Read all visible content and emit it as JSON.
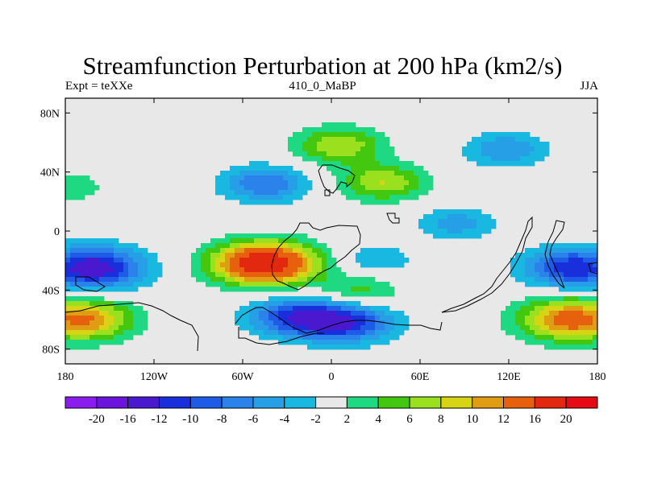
{
  "figure": {
    "title": "Streamfunction Perturbation at 200 hPa (km2/s)",
    "left_string": "Expt = teXXe",
    "center_string": "410_0_MaBP",
    "right_string": "JJA"
  },
  "map": {
    "projection": "cylindrical-equidistant",
    "lon_range": [
      -180,
      180
    ],
    "lat_range": [
      -90,
      90
    ],
    "lon_ticks": [
      {
        "value": -180,
        "label": "180"
      },
      {
        "value": -120,
        "label": "120W"
      },
      {
        "value": -60,
        "label": "60W"
      },
      {
        "value": 0,
        "label": "0"
      },
      {
        "value": 60,
        "label": "60E"
      },
      {
        "value": 120,
        "label": "120E"
      },
      {
        "value": 180,
        "label": "180"
      }
    ],
    "lat_ticks": [
      {
        "value": 80,
        "label": "80N"
      },
      {
        "value": 40,
        "label": "40N"
      },
      {
        "value": 0,
        "label": "0"
      },
      {
        "value": -40,
        "label": "40S"
      },
      {
        "value": -80,
        "label": "80S"
      }
    ],
    "background_color": "#e8e8e8",
    "coastlines": "paleogeographic outlines drawn in black"
  },
  "colorbar": {
    "levels": [
      "-20",
      "-16",
      "-12",
      "-10",
      "-8",
      "-6",
      "-4",
      "-2",
      "2",
      "4",
      "6",
      "8",
      "10",
      "12",
      "16",
      "20"
    ],
    "colors": [
      "#8a1cf0",
      "#6a14dd",
      "#4a18cf",
      "#1a2fdc",
      "#1e5be6",
      "#2a82ea",
      "#279fe6",
      "#18b8e0",
      "#e8e8e8",
      "#1ed882",
      "#43c80f",
      "#9ae01e",
      "#d6d414",
      "#e09c12",
      "#e6600e",
      "#e2280e",
      "#e60a14"
    ]
  },
  "chart_data": {
    "type": "heatmap",
    "variable": "Streamfunction Perturbation at 200 hPa",
    "units": "km2/s",
    "season": "JJA",
    "experiment": "teXXe",
    "case": "410_0_MaBP",
    "x_axis": "longitude",
    "xlim": [
      -180,
      180
    ],
    "y_axis": "latitude",
    "ylim": [
      -90,
      90
    ],
    "contour_levels": [
      -20,
      -16,
      -12,
      -10,
      -8,
      -6,
      -4,
      -2,
      2,
      4,
      6,
      8,
      10,
      12,
      16,
      20
    ],
    "features": [
      {
        "lon": -45,
        "lat": -22,
        "value": 20
      },
      {
        "lon": -162,
        "lat": -25,
        "value": -14
      },
      {
        "lon": 165,
        "lat": -25,
        "value": -12
      },
      {
        "lon": -170,
        "lat": -60,
        "value": 13
      },
      {
        "lon": 163,
        "lat": -60,
        "value": 14
      },
      {
        "lon": -25,
        "lat": -58,
        "value": -10
      },
      {
        "lon": 10,
        "lat": -62,
        "value": -11
      },
      {
        "lon": -45,
        "lat": 32,
        "value": -8
      },
      {
        "lon": 5,
        "lat": 58,
        "value": 8
      },
      {
        "lon": 35,
        "lat": 33,
        "value": 8
      },
      {
        "lon": 118,
        "lat": 55,
        "value": -6
      },
      {
        "lon": 85,
        "lat": 5,
        "value": -5
      },
      {
        "lon": 30,
        "lat": -20,
        "value": -4
      },
      {
        "lon": 20,
        "lat": -40,
        "value": 5
      },
      {
        "lon": -180,
        "lat": 30,
        "value": 4
      }
    ]
  }
}
